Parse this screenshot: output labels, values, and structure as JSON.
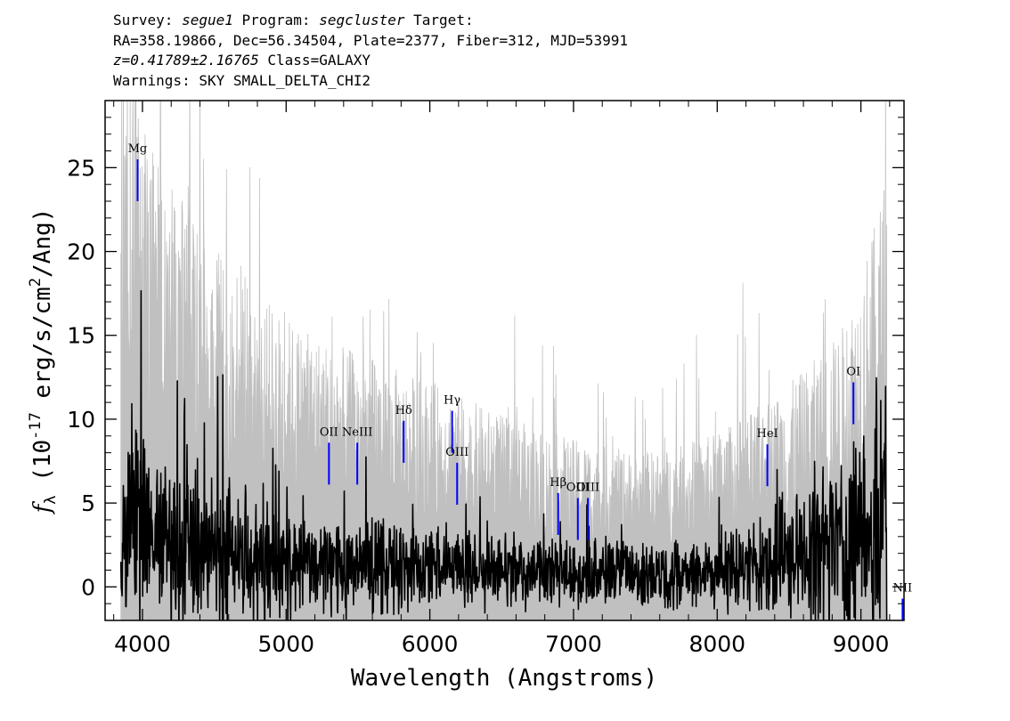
{
  "header": {
    "line1": {
      "survey_label": "Survey: ",
      "survey": "segue1",
      "program_label": " Program: ",
      "program": "segcluster",
      "target_label": " Target:"
    },
    "line2": "RA=358.19866, Dec=56.34504, Plate=2377, Fiber=312, MJD=53991",
    "line3": {
      "redshift": "z=0.41789±2.16765",
      "class": " Class=GALAXY"
    },
    "line4": "Warnings: SKY SMALL_DELTA_CHI2"
  },
  "chart_data": {
    "type": "line",
    "xlabel": "Wavelength (Angstroms)",
    "ylabel": "f_λ (10^-17 erg/s/cm^2/Ang)",
    "ylabel_parts": {
      "symbol": "f",
      "subscript": "λ",
      "before_exp": " (10",
      "exponent": "-17",
      "middle": " erg/s/cm",
      "exponent2": "2",
      "after": "/Ang)"
    },
    "xlim": [
      3740,
      9300
    ],
    "ylim": [
      -2,
      29
    ],
    "x_ticks": [
      4000,
      5000,
      6000,
      7000,
      8000,
      9000
    ],
    "y_ticks": [
      0,
      5,
      10,
      15,
      20,
      25
    ],
    "x_tick_labels": [
      "4000",
      "5000",
      "6000",
      "7000",
      "8000",
      "9000"
    ],
    "y_tick_labels": [
      "0",
      "5",
      "10",
      "15",
      "20",
      "25"
    ],
    "grid": false,
    "colors": {
      "flux": "#000000",
      "error": "#c0c0c0",
      "lines": "#0000ff"
    },
    "series": [
      {
        "role": "error",
        "x": [
          3850,
          3900,
          3950,
          4000,
          4100,
          4200,
          4300,
          4400,
          4500,
          4600,
          4800,
          5000,
          5200,
          5400,
          5600,
          5800,
          6000,
          6200,
          6400,
          6600,
          6800,
          7000,
          7200,
          7400,
          7600,
          7800,
          8000,
          8200,
          8400,
          8600,
          8800,
          8900,
          9000,
          9100,
          9180
        ],
        "y": [
          24,
          23,
          21.5,
          20,
          18.5,
          17.5,
          16.5,
          15.5,
          14.5,
          13.5,
          12.5,
          11.5,
          10.8,
          10.2,
          9.8,
          9.2,
          8.8,
          8.2,
          7.6,
          7.1,
          6.7,
          6.3,
          6.0,
          5.8,
          5.8,
          6.1,
          6.6,
          7.3,
          8.2,
          9.2,
          10.5,
          11.5,
          13.5,
          15.5,
          18
        ]
      },
      {
        "role": "flux",
        "x": [
          3850,
          3950,
          4050,
          4200,
          4400,
          4600,
          4800,
          5000,
          5200,
          5400,
          5600,
          5700,
          5800,
          6000,
          6200,
          6400,
          6600,
          6800,
          7000,
          7200,
          7400,
          7600,
          7800,
          8000,
          8200,
          8400,
          8600,
          8800,
          9000,
          9100,
          9180
        ],
        "y": [
          2.5,
          3,
          2.8,
          2.5,
          2.2,
          2.0,
          1.8,
          1.5,
          1.4,
          1.3,
          1.3,
          1.3,
          1.2,
          1.1,
          1.0,
          0.9,
          0.9,
          0.8,
          0.8,
          0.8,
          0.8,
          0.8,
          0.9,
          1.0,
          1.2,
          1.5,
          2.0,
          2.5,
          3.2,
          3.8,
          4.2
        ]
      }
    ],
    "line_markers": [
      {
        "label": "Mg",
        "x": 3966,
        "y_bottom": 23,
        "y_top": 25.5
      },
      {
        "label": "OII",
        "x": 5298,
        "y_bottom": 6.1,
        "y_top": 8.6
      },
      {
        "label": "NeIII",
        "x": 5495,
        "y_bottom": 6.1,
        "y_top": 8.6
      },
      {
        "label": "Hδ",
        "x": 5818,
        "y_bottom": 7.4,
        "y_top": 9.9
      },
      {
        "label": "Hγ",
        "x": 6155,
        "y_bottom": 8.0,
        "y_top": 10.5
      },
      {
        "label": "OIII",
        "x": 6190,
        "y_bottom": 4.9,
        "y_top": 7.4
      },
      {
        "label": "Hβ",
        "x": 6893,
        "y_bottom": 3.1,
        "y_top": 5.6
      },
      {
        "label": "OIII",
        "x": 7030,
        "y_bottom": 2.8,
        "y_top": 5.3
      },
      {
        "label": "OIII",
        "x": 7100,
        "y_bottom": 2.8,
        "y_top": 5.3
      },
      {
        "label": "HeI",
        "x": 8349,
        "y_bottom": 6.0,
        "y_top": 8.5
      },
      {
        "label": "OI",
        "x": 8948,
        "y_bottom": 9.7,
        "y_top": 12.2
      },
      {
        "label": "NII",
        "x": 9290,
        "y_bottom": -2,
        "y_top": -0.7
      }
    ]
  }
}
